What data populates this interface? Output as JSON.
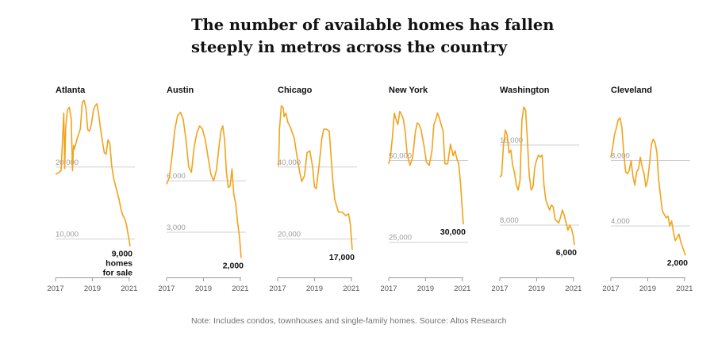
{
  "title": "The number of available homes has fallen steeply in metros across the country",
  "note": "Note: Includes condos, townhouses and single-family homes. Source: Altos Research",
  "colors": {
    "line": "#f2a31b",
    "grid": "#cfcfcf",
    "text": "#121212"
  },
  "chart_data": {
    "type": "line",
    "x_ticks": [
      "2017",
      "2019",
      "2021"
    ],
    "panels": [
      {
        "city": "Atlanta",
        "ylim": [
          5000,
          30000
        ],
        "ygrid": [
          {
            "value": 20000,
            "label": "20,000"
          },
          {
            "value": 10000,
            "label": "10,000"
          }
        ],
        "end_label": [
          "9,000",
          "homes",
          "for sale"
        ],
        "x": [
          2017.0,
          2017.15,
          2017.3,
          2017.45,
          2017.5,
          2017.55,
          2017.65,
          2017.75,
          2017.85,
          2017.92,
          2017.98,
          2018.02,
          2018.1,
          2018.2,
          2018.35,
          2018.45,
          2018.55,
          2018.65,
          2018.75,
          2018.85,
          2018.95,
          2019.05,
          2019.15,
          2019.25,
          2019.35,
          2019.45,
          2019.55,
          2019.65,
          2019.75,
          2019.85,
          2019.95,
          2020.05,
          2020.15,
          2020.25,
          2020.3,
          2020.35,
          2020.45,
          2020.55,
          2020.65,
          2020.75,
          2020.85,
          2020.95,
          2021.05
        ],
        "y": [
          19000,
          19200,
          19500,
          27500,
          19800,
          25500,
          28000,
          28300,
          26800,
          19500,
          23000,
          22500,
          23200,
          24200,
          25300,
          29000,
          29300,
          28200,
          25200,
          25000,
          26000,
          27800,
          28500,
          28800,
          27200,
          25200,
          23500,
          22000,
          21800,
          23800,
          23200,
          20200,
          18500,
          17500,
          17000,
          16500,
          15500,
          14200,
          13300,
          12900,
          12000,
          10500,
          9000
        ]
      },
      {
        "city": "Austin",
        "ylim": [
          500,
          11000
        ],
        "ygrid": [
          {
            "value": 6000,
            "label": "6,000"
          },
          {
            "value": 3000,
            "label": "3,000"
          }
        ],
        "end_label": [
          "2,000"
        ],
        "x": [
          2017.0,
          2017.15,
          2017.3,
          2017.45,
          2017.6,
          2017.75,
          2017.9,
          2018.05,
          2018.2,
          2018.35,
          2018.5,
          2018.65,
          2018.8,
          2018.95,
          2019.1,
          2019.25,
          2019.4,
          2019.55,
          2019.7,
          2019.85,
          2019.95,
          2020.05,
          2020.15,
          2020.25,
          2020.35,
          2020.45,
          2020.55,
          2020.65,
          2020.75,
          2020.85,
          2020.95,
          2021.05
        ],
        "y": [
          5800,
          6200,
          7500,
          9000,
          9800,
          10000,
          9600,
          8400,
          6800,
          6500,
          8000,
          8800,
          9200,
          9000,
          8400,
          7400,
          6400,
          6000,
          6600,
          8000,
          8900,
          9200,
          8400,
          6500,
          5600,
          5700,
          6700,
          5200,
          4700,
          3600,
          2800,
          1500
        ]
      },
      {
        "city": "Chicago",
        "ylim": [
          10000,
          60000
        ],
        "ygrid": [
          {
            "value": 40000,
            "label": "40,000"
          },
          {
            "value": 20000,
            "label": "20,000"
          }
        ],
        "end_label": [
          "17,000"
        ],
        "x": [
          2017.0,
          2017.05,
          2017.1,
          2017.2,
          2017.3,
          2017.35,
          2017.45,
          2017.55,
          2017.7,
          2017.9,
          2018.05,
          2018.2,
          2018.3,
          2018.45,
          2018.6,
          2018.75,
          2018.9,
          2019.0,
          2019.1,
          2019.25,
          2019.4,
          2019.5,
          2019.65,
          2019.8,
          2019.9,
          2020.0,
          2020.1,
          2020.3,
          2020.5,
          2020.7,
          2020.85,
          2020.95,
          2021.05
        ],
        "y": [
          41000,
          40500,
          50500,
          57000,
          56500,
          54000,
          55000,
          52500,
          51000,
          48000,
          43000,
          38500,
          36000,
          37500,
          44000,
          44500,
          40000,
          34500,
          34000,
          40500,
          48000,
          50500,
          50500,
          50000,
          43000,
          36000,
          31000,
          27500,
          27500,
          26500,
          27000,
          24000,
          17000
        ]
      },
      {
        "city": "New York",
        "ylim": [
          15000,
          70000
        ],
        "ygrid": [
          {
            "value": 50000,
            "label": "50,000"
          },
          {
            "value": 25000,
            "label": "25,000"
          }
        ],
        "end_label": [
          "30,000"
        ],
        "x": [
          2017.0,
          2017.1,
          2017.2,
          2017.3,
          2017.4,
          2017.5,
          2017.6,
          2017.7,
          2017.8,
          2017.9,
          2018.0,
          2018.15,
          2018.3,
          2018.45,
          2018.55,
          2018.65,
          2018.75,
          2018.9,
          2019.05,
          2019.2,
          2019.35,
          2019.45,
          2019.55,
          2019.65,
          2019.75,
          2019.85,
          2019.95,
          2020.05,
          2020.2,
          2020.35,
          2020.5,
          2020.6,
          2020.7,
          2020.8,
          2020.9,
          2021.05
        ],
        "y": [
          49000,
          51500,
          57000,
          64500,
          62500,
          61000,
          65000,
          64000,
          62500,
          58500,
          52000,
          48500,
          51000,
          59000,
          61500,
          61000,
          59500,
          55000,
          49500,
          48500,
          53000,
          61000,
          62500,
          64500,
          63000,
          61000,
          59000,
          49000,
          49000,
          55000,
          51500,
          53000,
          50500,
          49000,
          43000,
          30500
        ]
      },
      {
        "city": "Washington",
        "ylim": [
          3000,
          21000
        ],
        "ygrid": [
          {
            "value": 16000,
            "label": "16,000"
          },
          {
            "value": 8000,
            "label": "8,000"
          }
        ],
        "end_label": [
          "6,000"
        ],
        "x": [
          2017.0,
          2017.1,
          2017.2,
          2017.3,
          2017.4,
          2017.5,
          2017.6,
          2017.7,
          2017.8,
          2017.9,
          2018.0,
          2018.1,
          2018.2,
          2018.3,
          2018.4,
          2018.5,
          2018.6,
          2018.7,
          2018.8,
          2018.9,
          2019.0,
          2019.1,
          2019.2,
          2019.3,
          2019.4,
          2019.5,
          2019.6,
          2019.7,
          2019.8,
          2019.9,
          2020.0,
          2020.1,
          2020.2,
          2020.3,
          2020.4,
          2020.5,
          2020.6,
          2020.7,
          2020.8,
          2020.9,
          2021.0,
          2021.05
        ],
        "y": [
          12800,
          13000,
          16000,
          17500,
          17000,
          15200,
          15500,
          14000,
          13200,
          12000,
          11500,
          12500,
          18500,
          19800,
          19500,
          16500,
          13000,
          11500,
          11800,
          13800,
          14500,
          15000,
          14800,
          15000,
          12000,
          10500,
          10000,
          9500,
          10000,
          9800,
          8600,
          8400,
          8200,
          8800,
          9500,
          9000,
          8200,
          7500,
          8000,
          7600,
          6800,
          6000
        ]
      },
      {
        "city": "Cleveland",
        "ylim": [
          1000,
          12000
        ],
        "ygrid": [
          {
            "value": 8000,
            "label": "8,000"
          },
          {
            "value": 4000,
            "label": "4,000"
          }
        ],
        "end_label": [
          "2,000"
        ],
        "x": [
          2017.0,
          2017.1,
          2017.2,
          2017.3,
          2017.4,
          2017.5,
          2017.6,
          2017.7,
          2017.8,
          2017.9,
          2018.0,
          2018.1,
          2018.2,
          2018.3,
          2018.4,
          2018.5,
          2018.6,
          2018.7,
          2018.8,
          2018.9,
          2019.0,
          2019.1,
          2019.2,
          2019.3,
          2019.4,
          2019.5,
          2019.6,
          2019.7,
          2019.8,
          2019.9,
          2020.0,
          2020.1,
          2020.2,
          2020.3,
          2020.4,
          2020.5,
          2020.6,
          2020.7,
          2020.8,
          2020.9,
          2021.05
        ],
        "y": [
          8200,
          8800,
          9600,
          10000,
          10500,
          10600,
          10000,
          8500,
          7300,
          7200,
          7400,
          8000,
          7000,
          6500,
          7300,
          7500,
          8200,
          7600,
          7200,
          6400,
          6800,
          7800,
          9000,
          9300,
          9100,
          8500,
          6800,
          5800,
          4900,
          4700,
          4500,
          4600,
          4000,
          4300,
          3600,
          3100,
          3300,
          3500,
          3000,
          2700,
          2200
        ]
      }
    ]
  }
}
